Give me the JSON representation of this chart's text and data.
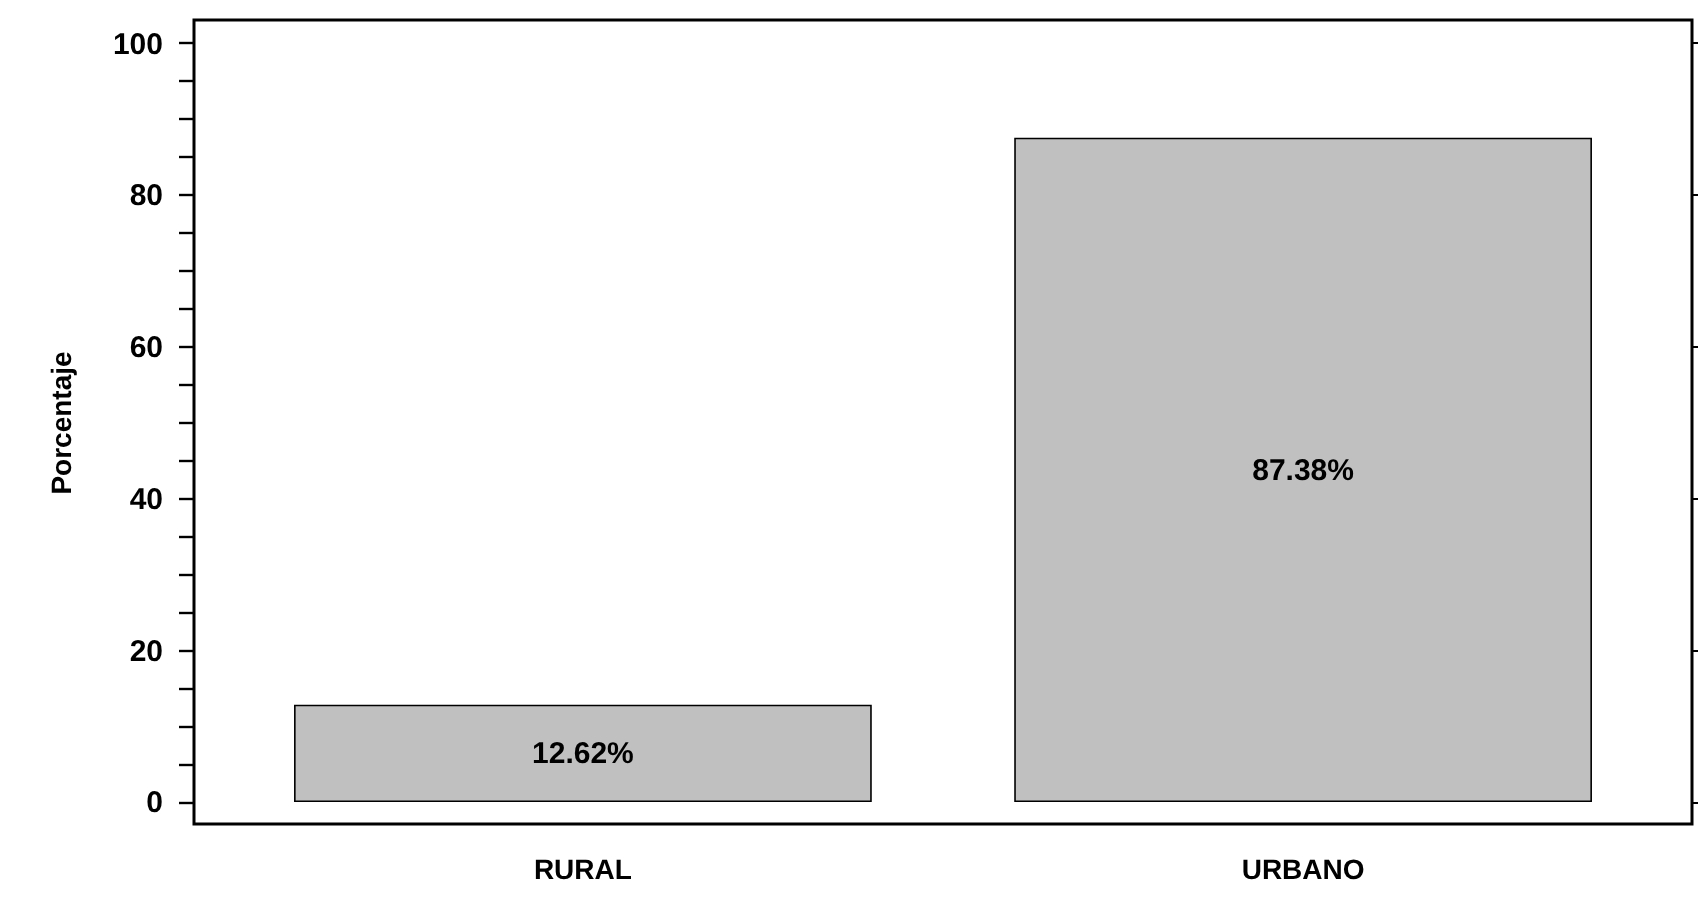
{
  "chart_data": {
    "type": "bar",
    "ylabel": "Porcentaje",
    "categories": [
      "RURAL",
      "URBANO"
    ],
    "values": [
      12.62,
      87.38
    ],
    "value_labels": [
      "12.62%",
      "87.38%"
    ],
    "color": "#c0c0c0",
    "ylim": [
      -3,
      103
    ],
    "yticks": [
      0,
      {
        "value": 5,
        "label": null
      },
      {
        "value": 10,
        "label": null
      },
      {
        "value": 15,
        "label": null
      },
      20,
      {
        "value": 25,
        "label": null
      },
      {
        "value": 30,
        "label": null
      },
      {
        "value": 35,
        "label": null
      },
      40,
      {
        "value": 45,
        "label": null
      },
      {
        "value": 50,
        "label": null
      },
      {
        "value": 55,
        "label": null
      },
      60,
      {
        "value": 65,
        "label": null
      },
      {
        "value": 70,
        "label": null
      },
      {
        "value": 75,
        "label": null
      },
      80,
      {
        "value": 85,
        "label": null
      },
      {
        "value": 90,
        "label": null
      },
      {
        "value": 95,
        "label": null
      },
      100
    ],
    "grid": false
  }
}
